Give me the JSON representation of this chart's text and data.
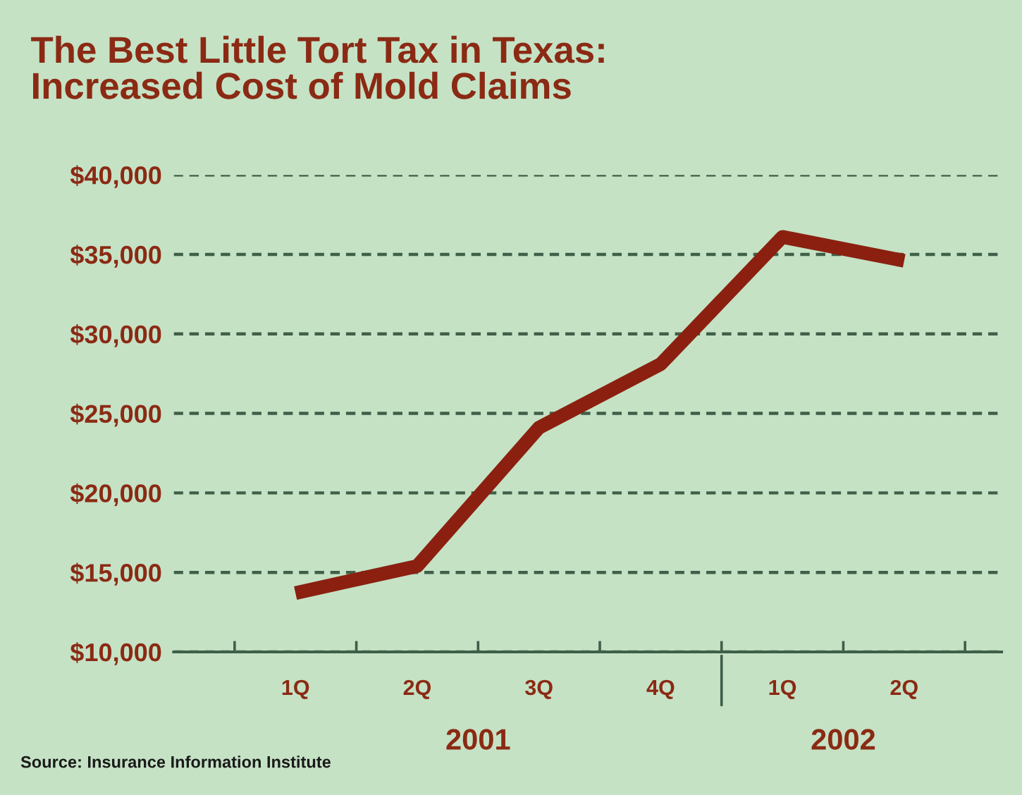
{
  "chart_data": {
    "type": "line",
    "title": "The Best Little Tort Tax in Texas:\nIncreased Cost of Mold Claims",
    "categories": [
      "1Q",
      "2Q",
      "3Q",
      "4Q",
      "1Q",
      "2Q"
    ],
    "series": [
      {
        "color": "#8b2010",
        "values": [
          13700,
          15400,
          24100,
          28100,
          36100,
          34600
        ]
      }
    ],
    "ylim": [
      10000,
      40000
    ],
    "yticks": [
      {
        "value": 10000,
        "label": "$10,000"
      },
      {
        "value": 15000,
        "label": "$15,000"
      },
      {
        "value": 20000,
        "label": "$20,000"
      },
      {
        "value": 25000,
        "label": "$25,000"
      },
      {
        "value": 30000,
        "label": "$30,000"
      },
      {
        "value": 35000,
        "label": "$35,000"
      },
      {
        "value": 40000,
        "label": "$40,000"
      }
    ],
    "grid": "y",
    "marker": "none",
    "line_style": "solid",
    "legend": false,
    "annotations": [
      "2001",
      "2002",
      "Source: Insurance Information Institute"
    ]
  }
}
